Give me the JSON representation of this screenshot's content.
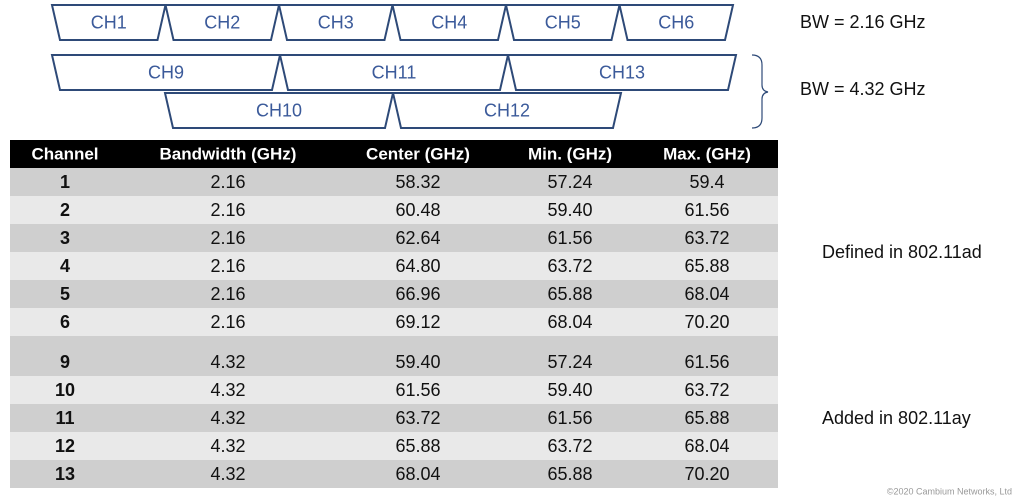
{
  "channel_diagram": {
    "row1": [
      "CH1",
      "CH2",
      "CH3",
      "CH4",
      "CH5",
      "CH6"
    ],
    "row2": [
      "CH9",
      "CH11",
      "CH13"
    ],
    "row3": [
      "CH10",
      "CH12"
    ],
    "bw_labels": [
      "BW = 2.16 GHz",
      "BW = 4.32 GHz"
    ]
  },
  "table": {
    "header": [
      "Channel",
      "Bandwidth (GHz)",
      "Center (GHz)",
      "Min. (GHz)",
      "Max. (GHz)"
    ],
    "groups": [
      {
        "label": "Defined in 802.11ad",
        "rows": [
          [
            "1",
            "2.16",
            "58.32",
            "57.24",
            "59.4"
          ],
          [
            "2",
            "2.16",
            "60.48",
            "59.40",
            "61.56"
          ],
          [
            "3",
            "2.16",
            "62.64",
            "61.56",
            "63.72"
          ],
          [
            "4",
            "2.16",
            "64.80",
            "63.72",
            "65.88"
          ],
          [
            "5",
            "2.16",
            "66.96",
            "65.88",
            "68.04"
          ],
          [
            "6",
            "2.16",
            "69.12",
            "68.04",
            "70.20"
          ]
        ]
      },
      {
        "label": "Added in 802.11ay",
        "rows": [
          [
            "9",
            "4.32",
            "59.40",
            "57.24",
            "61.56"
          ],
          [
            "10",
            "4.32",
            "61.56",
            "59.40",
            "63.72"
          ],
          [
            "11",
            "4.32",
            "63.72",
            "61.56",
            "65.88"
          ],
          [
            "12",
            "4.32",
            "65.88",
            "63.72",
            "68.04"
          ],
          [
            "13",
            "4.32",
            "68.04",
            "65.88",
            "70.20"
          ]
        ]
      }
    ]
  },
  "footer": "©2020 Cambium Networks, Ltd"
}
